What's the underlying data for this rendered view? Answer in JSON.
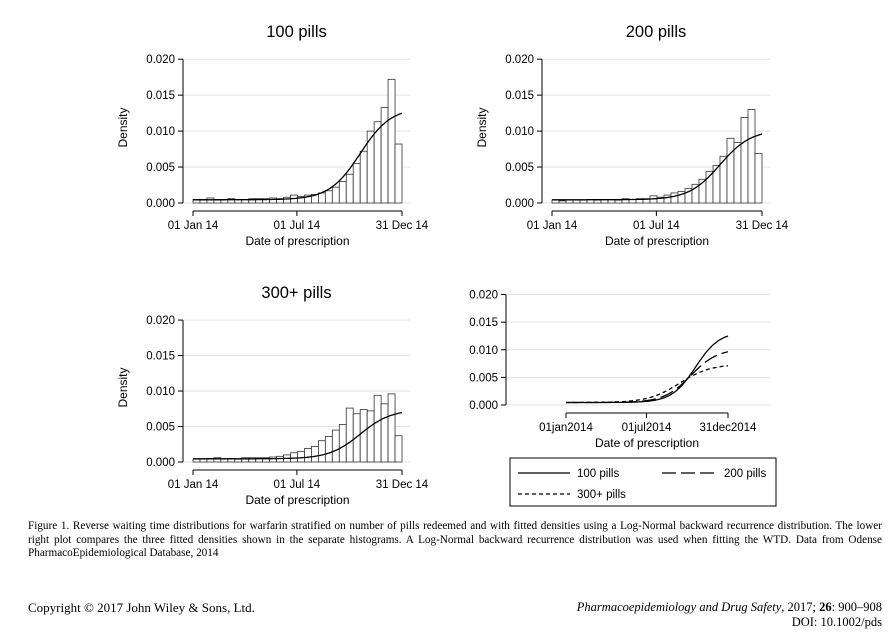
{
  "chart_data": [
    {
      "type": "bar",
      "title": "100 pills",
      "ylabel": "Density",
      "xlabel": "Date of prescription",
      "x_ticks": [
        "01 Jan 14",
        "01 Jul 14",
        "31 Dec 14"
      ],
      "y_ticks": [
        "0.000",
        "0.005",
        "0.010",
        "0.015",
        "0.020"
      ],
      "ylim": [
        0,
        0.021
      ],
      "grid": true,
      "bins": 30,
      "values": [
        0.0005,
        0.0005,
        0.0007,
        0.0005,
        0.0005,
        0.0006,
        0.0005,
        0.0005,
        0.0006,
        0.0006,
        0.0006,
        0.0007,
        0.0006,
        0.0008,
        0.0011,
        0.0009,
        0.0011,
        0.0012,
        0.0014,
        0.0017,
        0.0022,
        0.003,
        0.004,
        0.0055,
        0.0072,
        0.01,
        0.0113,
        0.0133,
        0.0172,
        0.0082
      ],
      "fit": "log-normal",
      "fit_max": 0.0133
    },
    {
      "type": "bar",
      "title": "200 pills",
      "ylabel": "Density",
      "xlabel": "Date of prescription",
      "x_ticks": [
        "01 Jan 14",
        "01 Jul 14",
        "31 Dec 14"
      ],
      "y_ticks": [
        "0.000",
        "0.005",
        "0.010",
        "0.015",
        "0.020"
      ],
      "ylim": [
        0,
        0.021
      ],
      "grid": true,
      "bins": 30,
      "values": [
        0.0004,
        0.0003,
        0.0004,
        0.0004,
        0.0004,
        0.0005,
        0.0004,
        0.0005,
        0.0005,
        0.0004,
        0.0006,
        0.0005,
        0.0006,
        0.0006,
        0.001,
        0.0008,
        0.0011,
        0.0014,
        0.0016,
        0.002,
        0.0026,
        0.0033,
        0.0044,
        0.0052,
        0.0065,
        0.009,
        0.0084,
        0.0119,
        0.013,
        0.0069
      ],
      "fit": "log-normal",
      "fit_max": 0.0102
    },
    {
      "type": "bar",
      "title": "300+ pills",
      "ylabel": "Density",
      "xlabel": "Date of prescription",
      "x_ticks": [
        "01 Jan 14",
        "01 Jul 14",
        "31 Dec 14"
      ],
      "y_ticks": [
        "0.000",
        "0.005",
        "0.010",
        "0.015",
        "0.020"
      ],
      "ylim": [
        0,
        0.021
      ],
      "grid": true,
      "bins": 30,
      "values": [
        0.0004,
        0.0004,
        0.0005,
        0.0006,
        0.0004,
        0.0005,
        0.0004,
        0.0006,
        0.0006,
        0.0006,
        0.0006,
        0.0007,
        0.0008,
        0.001,
        0.0013,
        0.0015,
        0.0019,
        0.0022,
        0.003,
        0.0036,
        0.0045,
        0.0053,
        0.0076,
        0.0068,
        0.0074,
        0.0072,
        0.0094,
        0.0082,
        0.0096,
        0.0037
      ],
      "fit": "log-normal",
      "fit_max": 0.0074
    },
    {
      "type": "line",
      "title": "",
      "ylabel": "",
      "xlabel": "Date of prescription",
      "x_ticks": [
        "01jan2014",
        "01jul2014",
        "31dec2014"
      ],
      "y_ticks": [
        "0.000",
        "0.005",
        "0.010",
        "0.015",
        "0.020"
      ],
      "ylim": [
        0,
        0.021
      ],
      "grid": true,
      "legend_position": "bottom",
      "series": [
        {
          "name": "100 pills",
          "style": "solid",
          "max": 0.0133
        },
        {
          "name": "200 pills",
          "style": "long-dash",
          "max": 0.0102
        },
        {
          "name": "300+ pills",
          "style": "short-dash",
          "max": 0.0074
        }
      ]
    }
  ],
  "caption": "Figure 1.   Reverse waiting time distributions for warfarin stratified on number of pills redeemed and with fitted densities using a Log-Normal backward recurrence distribution. The lower right plot compares the three fitted densities shown in the separate histograms. A Log-Normal backward recurrence distribution was used when fitting the WTD. Data from Odense PharmacoEpidemiological Database, 2014",
  "footer": {
    "copyright": "Copyright © 2017 John Wiley & Sons, Ltd.",
    "journal_name": "Pharmacoepidemiology and Drug Safety",
    "journal_year": ", 2017; ",
    "journal_volume": "26",
    "journal_pages": ": 900–908",
    "doi": "DOI: 10.1002/pds"
  }
}
